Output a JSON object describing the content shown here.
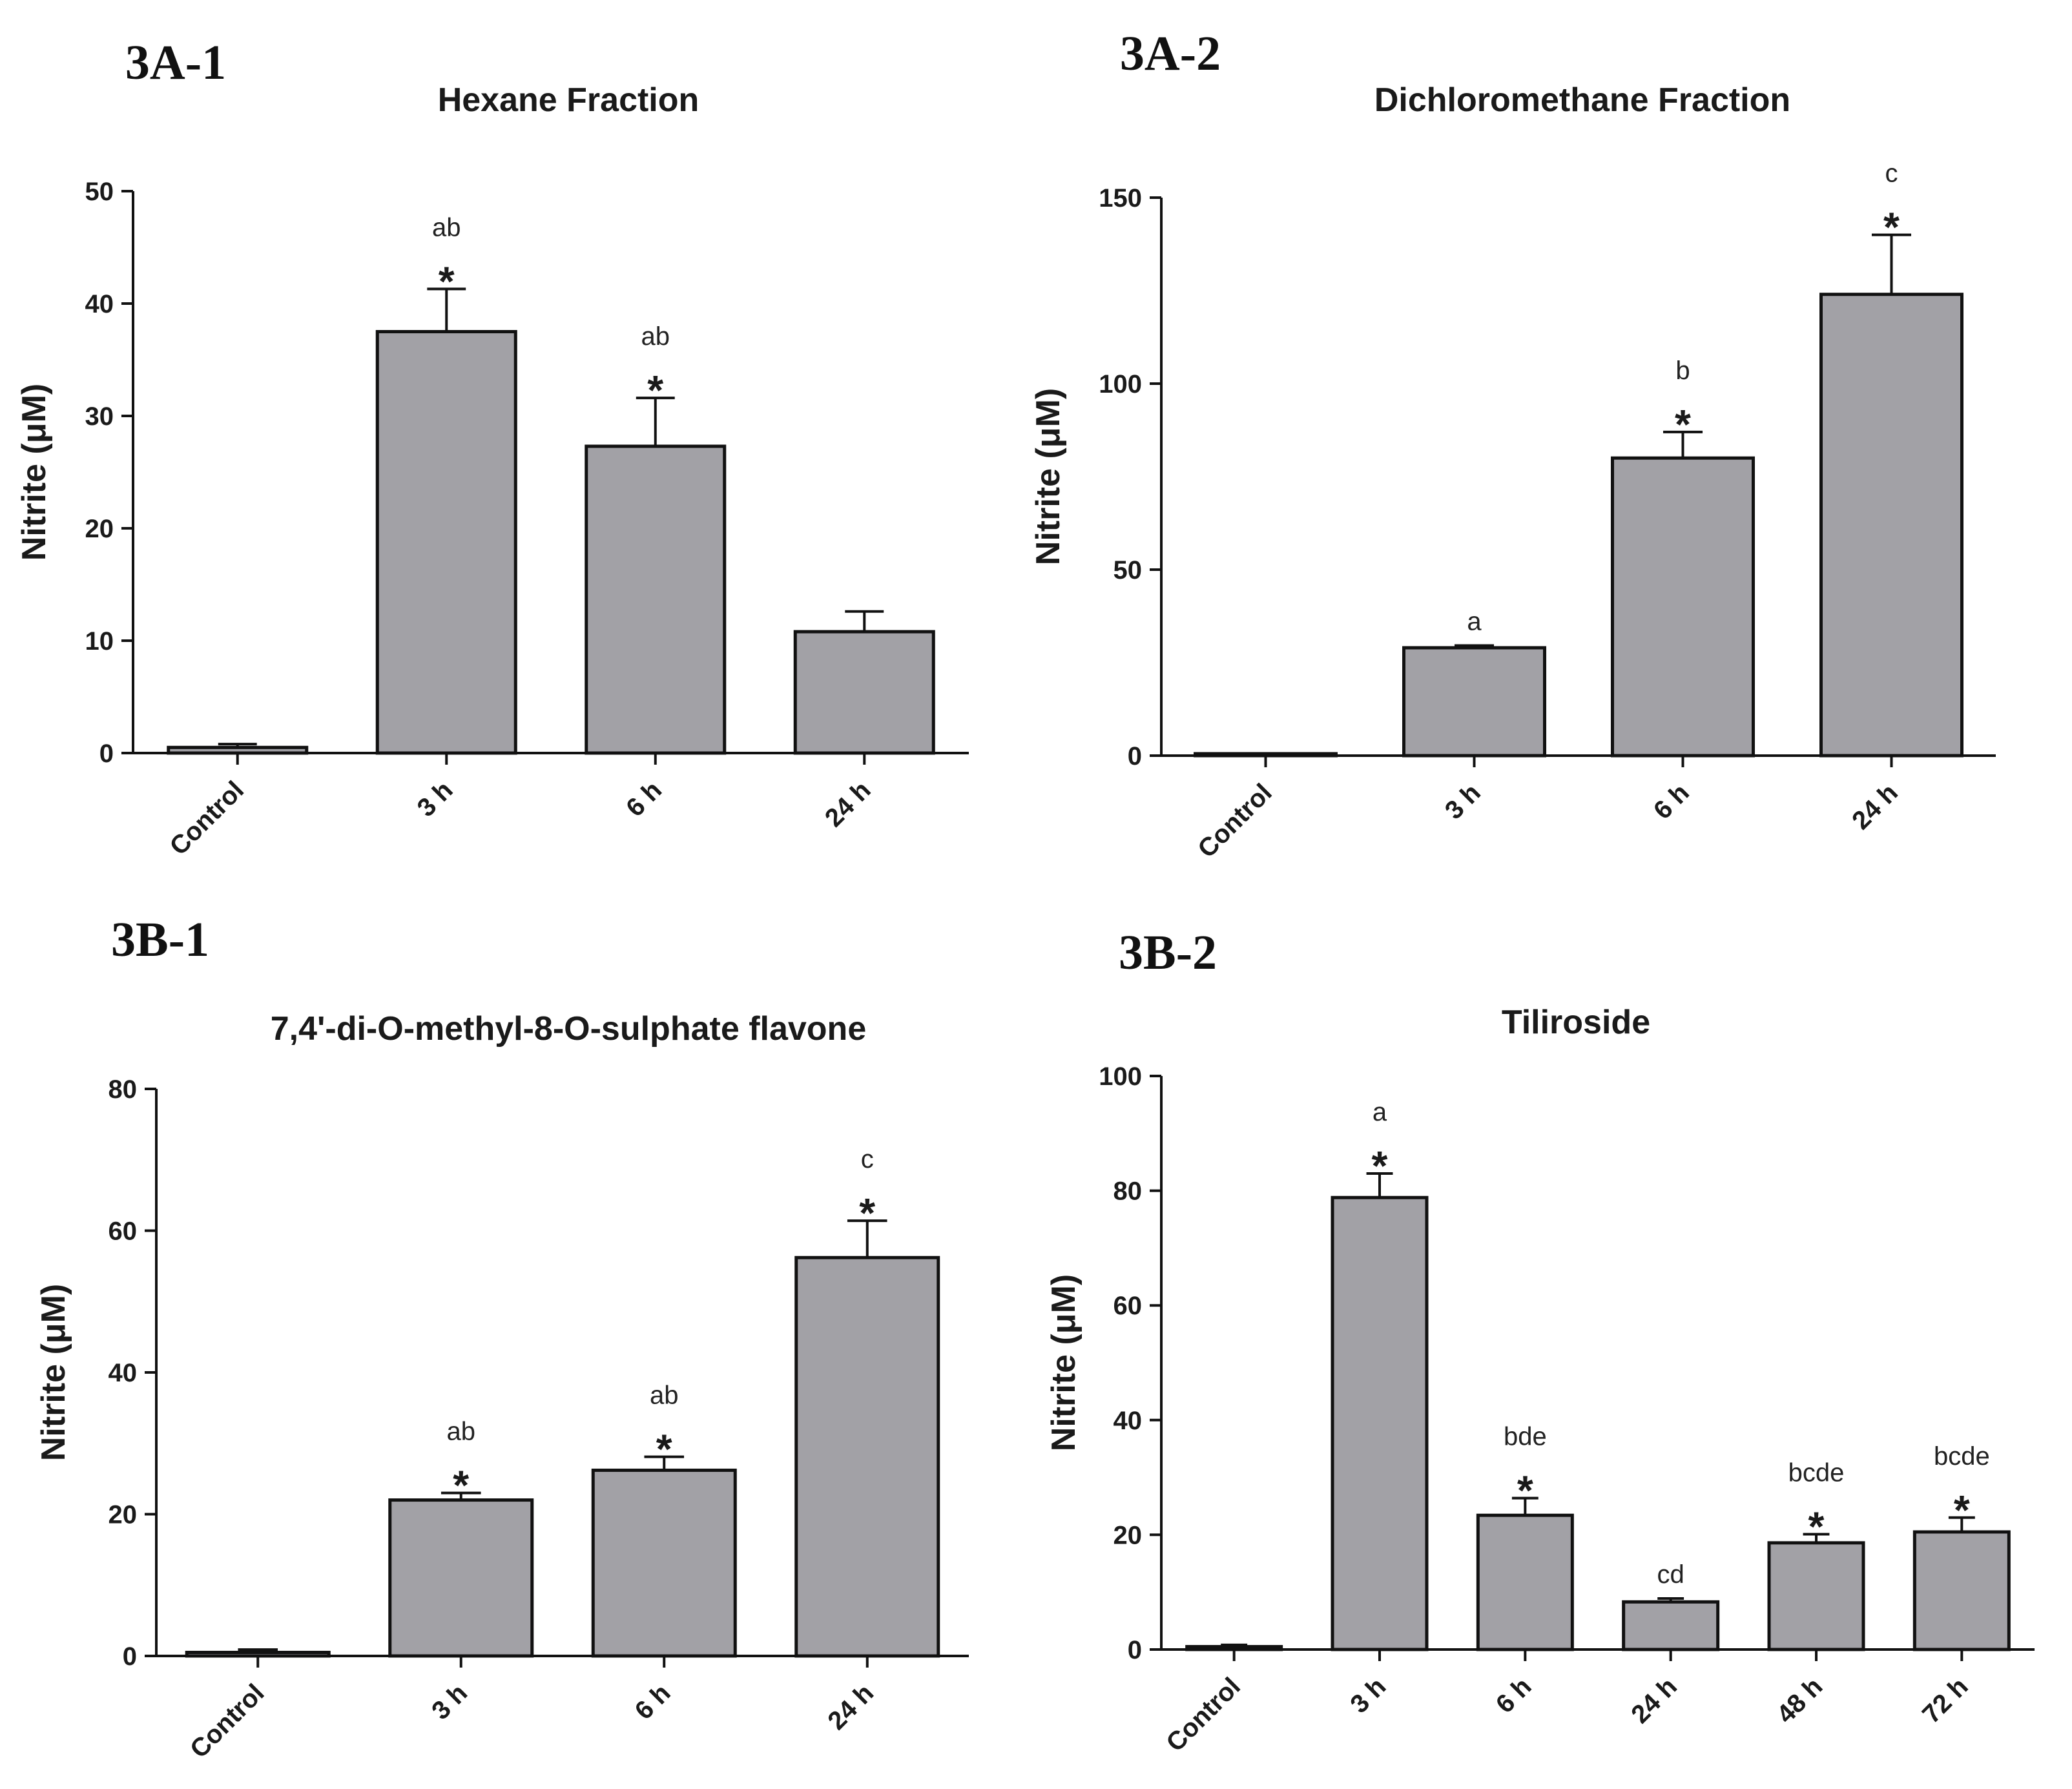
{
  "chart_data": [
    {
      "panel": "3A-1",
      "type": "bar",
      "title": "Hexane Fraction",
      "ylabel": "Nitrite (μM)",
      "xlabel": "",
      "ylim": [
        0,
        50
      ],
      "yticks": [
        0,
        10,
        20,
        30,
        40,
        50
      ],
      "categories": [
        "Control",
        "3 h",
        "6 h",
        "24 h"
      ],
      "values": [
        0.5,
        37.5,
        27.3,
        10.8
      ],
      "errors": [
        0.3,
        3.8,
        4.3,
        1.8
      ],
      "letters": [
        "",
        "ab",
        "ab",
        ""
      ],
      "stars": [
        "",
        "*",
        "*",
        ""
      ]
    },
    {
      "panel": "3A-2",
      "type": "bar",
      "title": "Dichloromethane Fraction",
      "ylabel": "Nitrite (μM)",
      "xlabel": "",
      "ylim": [
        0,
        150
      ],
      "yticks": [
        0,
        50,
        100,
        150
      ],
      "categories": [
        "Control",
        "3 h",
        "6 h",
        "24 h"
      ],
      "values": [
        0.3,
        29,
        80,
        124
      ],
      "errors": [
        0.2,
        0.6,
        7,
        16
      ],
      "letters": [
        "",
        "a",
        "b",
        "c"
      ],
      "stars": [
        "",
        "",
        "*",
        "*"
      ]
    },
    {
      "panel": "3B-1",
      "type": "bar",
      "title": "7,4'-di-O-methyl-8-O-sulphate flavone",
      "ylabel": "Nitrite (μM)",
      "xlabel": "",
      "ylim": [
        0,
        80
      ],
      "yticks": [
        0,
        20,
        40,
        60,
        80
      ],
      "categories": [
        "Control",
        "3 h",
        "6 h",
        "24 h"
      ],
      "values": [
        0.5,
        22,
        26.2,
        56.2
      ],
      "errors": [
        0.4,
        1,
        1.9,
        5.2
      ],
      "letters": [
        "",
        "ab",
        "ab",
        "c"
      ],
      "stars": [
        "",
        "*",
        "*",
        "*"
      ]
    },
    {
      "panel": "3B-2",
      "type": "bar",
      "title": "Tiliroside",
      "ylabel": "Nitrite (μM)",
      "xlabel": "",
      "ylim": [
        0,
        100
      ],
      "yticks": [
        0,
        20,
        40,
        60,
        80,
        100
      ],
      "categories": [
        "Control",
        "3 h",
        "6 h",
        "24 h",
        "48 h",
        "72 h"
      ],
      "values": [
        0.5,
        78.8,
        23.4,
        8.3,
        18.6,
        20.5
      ],
      "errors": [
        0.3,
        4.2,
        3,
        0.6,
        1.5,
        2.5
      ],
      "letters": [
        "",
        "a",
        "bde",
        "cd",
        "bcde",
        "bcde"
      ],
      "stars": [
        "",
        "*",
        "*",
        "",
        "*",
        "*"
      ]
    }
  ]
}
